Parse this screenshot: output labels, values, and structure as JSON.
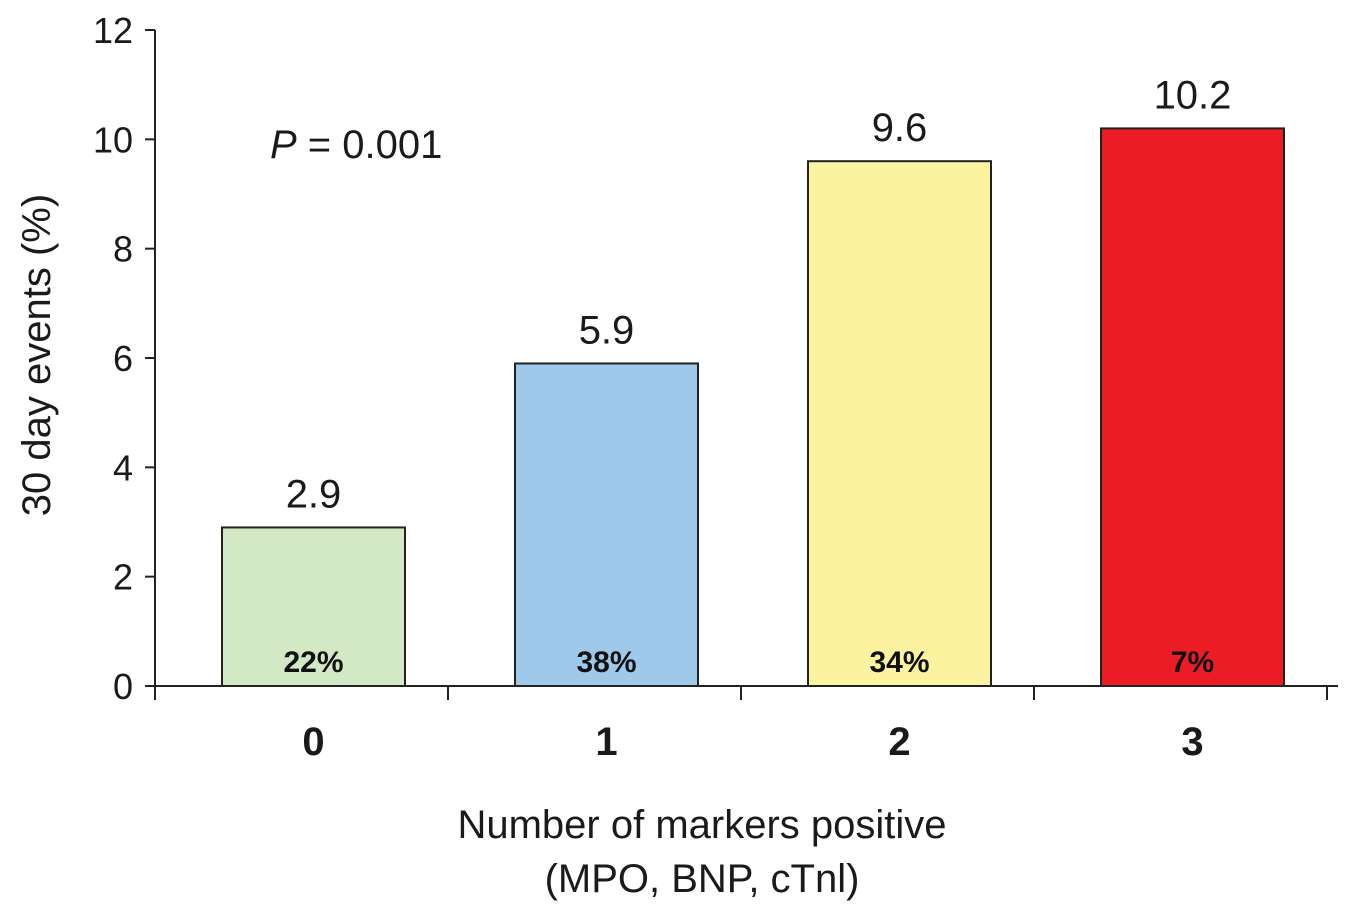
{
  "chart_data": {
    "type": "bar",
    "categories": [
      "0",
      "1",
      "2",
      "3"
    ],
    "values": [
      2.9,
      5.9,
      9.6,
      10.2
    ],
    "value_labels": [
      "2.9",
      "5.9",
      "9.6",
      "10.2"
    ],
    "inner_labels": [
      "22%",
      "38%",
      "34%",
      "7%"
    ],
    "colors": [
      "#d3e8c4",
      "#9fc9ea",
      "#fbf3a0",
      "#ec1c24"
    ],
    "ylabel": "30 day events (%)",
    "xlabel_line1": "Number of markers positive",
    "xlabel_line2": "(MPO, BNP, cTnl)",
    "ylim": [
      0,
      12
    ],
    "yticks": [
      0,
      2,
      4,
      6,
      8,
      10,
      12
    ],
    "annotation": {
      "p_symbol": "P",
      "p_text": " = 0.001"
    },
    "grid": false,
    "legend": "none"
  }
}
